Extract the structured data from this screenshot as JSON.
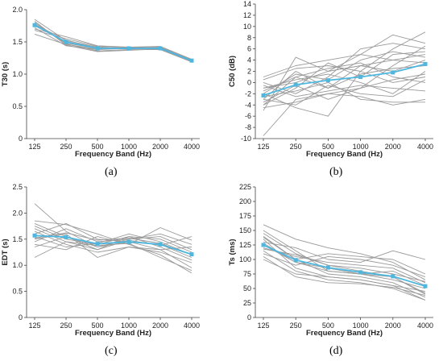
{
  "colors": {
    "individual": "#9a9a9a",
    "mean": "#4db7e0",
    "axis": "#444444",
    "background": "#ffffff"
  },
  "panel_labels": [
    "(a)",
    "(b)",
    "(c)",
    "(d)"
  ],
  "chart_data": [
    {
      "type": "line",
      "panel": "(a)",
      "xlabel": "Frequency Band (Hz)",
      "ylabel": "T30 (s)",
      "categories": [
        "125",
        "250",
        "500",
        "1000",
        "2000",
        "4000"
      ],
      "ylim": [
        0,
        2
      ],
      "yticks": [
        "0",
        "0.5",
        "1.0",
        "1.5",
        "2.0"
      ],
      "grid": false,
      "series": [
        {
          "values": [
            1.78,
            1.48,
            1.4,
            1.4,
            1.4,
            1.22
          ]
        },
        {
          "values": [
            1.85,
            1.52,
            1.42,
            1.39,
            1.41,
            1.21
          ]
        },
        {
          "values": [
            1.72,
            1.44,
            1.38,
            1.4,
            1.39,
            1.2
          ]
        },
        {
          "values": [
            1.68,
            1.55,
            1.43,
            1.41,
            1.42,
            1.22
          ]
        },
        {
          "values": [
            1.8,
            1.47,
            1.36,
            1.38,
            1.38,
            1.19
          ]
        },
        {
          "values": [
            1.75,
            1.5,
            1.41,
            1.4,
            1.4,
            1.21
          ]
        },
        {
          "values": [
            1.7,
            1.58,
            1.44,
            1.42,
            1.43,
            1.23
          ]
        },
        {
          "values": [
            1.82,
            1.45,
            1.35,
            1.37,
            1.39,
            1.2
          ]
        },
        {
          "values": [
            1.62,
            1.46,
            1.39,
            1.41,
            1.4,
            1.22
          ]
        },
        {
          "values": [
            1.77,
            1.53,
            1.4,
            1.39,
            1.41,
            1.21
          ]
        }
      ],
      "mean": [
        1.76,
        1.5,
        1.4,
        1.4,
        1.4,
        1.21
      ]
    },
    {
      "type": "line",
      "panel": "(b)",
      "xlabel": "Frequency Band (Hz)",
      "ylabel": "C50 (dB)",
      "categories": [
        "125",
        "250",
        "500",
        "1000",
        "2000",
        "4000"
      ],
      "ylim": [
        -10,
        14
      ],
      "yticks": [
        "-10",
        "-8",
        "-6",
        "-4",
        "-2",
        "0",
        "2",
        "4",
        "6",
        "8",
        "10",
        "12",
        "14"
      ],
      "grid": false,
      "series": [
        {
          "values": [
            -9.5,
            -3,
            -2,
            -1,
            0.5,
            1.5
          ]
        },
        {
          "values": [
            -5,
            4.5,
            2,
            5,
            8.5,
            7
          ]
        },
        {
          "values": [
            -4,
            -1,
            3.5,
            1,
            5,
            5.5
          ]
        },
        {
          "values": [
            -3,
            2,
            -1,
            3,
            2,
            4
          ]
        },
        {
          "values": [
            -2,
            -4.5,
            -6,
            2,
            6,
            9
          ]
        },
        {
          "values": [
            -1,
            0.5,
            1.5,
            0,
            -2,
            2
          ]
        },
        {
          "values": [
            0,
            -2,
            1,
            6,
            7,
            6
          ]
        },
        {
          "values": [
            -2.5,
            -1.5,
            0,
            -3,
            -3.5,
            -3.5
          ]
        },
        {
          "values": [
            1,
            3,
            4,
            5,
            4,
            3.5
          ]
        },
        {
          "values": [
            -4.5,
            -3.5,
            -2,
            -2.5,
            -4,
            -3
          ]
        },
        {
          "values": [
            -1.5,
            1,
            2.5,
            3.5,
            1,
            0
          ]
        },
        {
          "values": [
            -3.5,
            -0.5,
            -3,
            -1,
            3,
            6.5
          ]
        },
        {
          "values": [
            -2,
            1.5,
            0.5,
            4,
            5.5,
            4.5
          ]
        },
        {
          "values": [
            -0.5,
            -2.5,
            -1.5,
            -0.5,
            -1,
            -1.5
          ]
        },
        {
          "values": [
            0.5,
            2.5,
            3,
            2,
            0,
            1
          ]
        },
        {
          "values": [
            -3,
            -4,
            -0.5,
            -2,
            -2.5,
            0.5
          ]
        },
        {
          "values": [
            -1,
            0,
            2,
            3,
            4,
            5
          ]
        },
        {
          "values": [
            -4,
            1,
            -1,
            1.5,
            2.5,
            3
          ]
        }
      ],
      "mean": [
        -2.3,
        -0.4,
        0.4,
        1.0,
        1.8,
        3.3
      ]
    },
    {
      "type": "line",
      "panel": "(c)",
      "xlabel": "Frequency Band (Hz)",
      "ylabel": "EDT (s)",
      "categories": [
        "125",
        "250",
        "500",
        "1000",
        "2000",
        "4000"
      ],
      "ylim": [
        0,
        2.5
      ],
      "yticks": [
        "0",
        "0.5",
        "1.0",
        "1.5",
        "2.0",
        "2.5"
      ],
      "grid": false,
      "series": [
        {
          "values": [
            2.18,
            1.65,
            1.35,
            1.5,
            1.55,
            1.3
          ]
        },
        {
          "values": [
            1.85,
            1.78,
            1.6,
            1.4,
            1.72,
            1.48
          ]
        },
        {
          "values": [
            1.7,
            1.45,
            1.3,
            1.55,
            1.35,
            1.1
          ]
        },
        {
          "values": [
            1.6,
            1.8,
            1.5,
            1.45,
            1.3,
            0.95
          ]
        },
        {
          "values": [
            1.55,
            1.35,
            1.42,
            1.6,
            1.45,
            1.2
          ]
        },
        {
          "values": [
            1.5,
            1.6,
            1.15,
            1.35,
            1.25,
            1.05
          ]
        },
        {
          "values": [
            1.45,
            1.7,
            1.45,
            1.5,
            1.6,
            1.4
          ]
        },
        {
          "values": [
            1.4,
            1.3,
            1.55,
            1.4,
            1.2,
            0.85
          ]
        },
        {
          "values": [
            1.75,
            1.5,
            1.4,
            1.55,
            1.5,
            1.25
          ]
        },
        {
          "values": [
            1.35,
            1.55,
            1.35,
            1.45,
            1.4,
            1.15
          ]
        },
        {
          "values": [
            1.65,
            1.4,
            1.25,
            1.35,
            1.3,
            1.35
          ]
        },
        {
          "values": [
            1.52,
            1.62,
            1.48,
            1.52,
            1.42,
            1.2
          ]
        },
        {
          "values": [
            1.15,
            1.45,
            1.38,
            1.42,
            1.15,
            0.9
          ]
        },
        {
          "values": [
            1.8,
            1.55,
            1.3,
            1.48,
            1.38,
            1.55
          ]
        }
      ],
      "mean": [
        1.57,
        1.54,
        1.41,
        1.45,
        1.4,
        1.21
      ]
    },
    {
      "type": "line",
      "panel": "(d)",
      "xlabel": "Frequency Band (Hz)",
      "ylabel": "Ts (ms)",
      "categories": [
        "125",
        "250",
        "500",
        "1000",
        "2000",
        "4000"
      ],
      "ylim": [
        0,
        225
      ],
      "yticks": [
        "0",
        "25",
        "50",
        "75",
        "100",
        "125",
        "150",
        "175",
        "200",
        "225"
      ],
      "grid": false,
      "series": [
        {
          "values": [
            160,
            135,
            120,
            110,
            95,
            65
          ]
        },
        {
          "values": [
            145,
            110,
            90,
            80,
            70,
            40
          ]
        },
        {
          "values": [
            140,
            100,
            75,
            70,
            60,
            35
          ]
        },
        {
          "values": [
            135,
            85,
            70,
            65,
            55,
            30
          ]
        },
        {
          "values": [
            130,
            120,
            100,
            95,
            115,
            100
          ]
        },
        {
          "values": [
            125,
            95,
            85,
            75,
            65,
            50
          ]
        },
        {
          "values": [
            120,
            105,
            95,
            90,
            85,
            60
          ]
        },
        {
          "values": [
            115,
            80,
            65,
            60,
            50,
            30
          ]
        },
        {
          "values": [
            110,
            90,
            105,
            100,
            90,
            70
          ]
        },
        {
          "values": [
            100,
            75,
            70,
            65,
            55,
            45
          ]
        },
        {
          "values": [
            150,
            115,
            80,
            75,
            80,
            55
          ]
        },
        {
          "values": [
            138,
            100,
            110,
            105,
            100,
            75
          ]
        },
        {
          "values": [
            128,
            95,
            80,
            75,
            70,
            42
          ]
        },
        {
          "values": [
            105,
            70,
            60,
            58,
            52,
            38
          ]
        },
        {
          "values": [
            118,
            108,
            90,
            85,
            75,
            62
          ]
        }
      ],
      "mean": [
        125,
        99,
        86,
        78,
        71,
        54
      ]
    }
  ]
}
